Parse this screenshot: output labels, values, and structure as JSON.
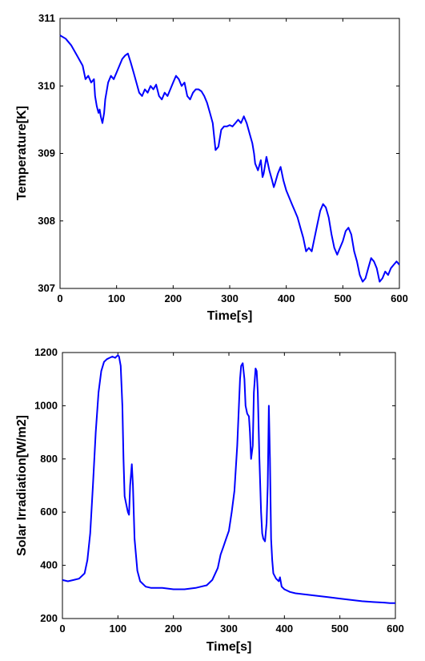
{
  "chart_data": [
    {
      "type": "line",
      "xlabel": "Time[s]",
      "ylabel": "Temperature[K]",
      "xlim": [
        0,
        600
      ],
      "ylim": [
        307,
        311
      ],
      "xticks": [
        "0",
        "100",
        "200",
        "300",
        "400",
        "500",
        "600"
      ],
      "yticks": [
        "307",
        "308",
        "309",
        "310",
        "311"
      ],
      "grid": false,
      "line_color": "#0000ff",
      "x": [
        0,
        10,
        20,
        30,
        40,
        45,
        50,
        55,
        60,
        62,
        65,
        68,
        70,
        72,
        75,
        78,
        80,
        85,
        90,
        95,
        100,
        110,
        115,
        120,
        125,
        130,
        135,
        140,
        145,
        150,
        155,
        160,
        165,
        170,
        175,
        180,
        185,
        190,
        195,
        200,
        205,
        210,
        215,
        220,
        225,
        230,
        235,
        240,
        245,
        250,
        255,
        260,
        265,
        270,
        275,
        280,
        285,
        290,
        295,
        300,
        305,
        310,
        315,
        320,
        325,
        330,
        335,
        340,
        343,
        345,
        350,
        355,
        358,
        360,
        365,
        370,
        375,
        378,
        380,
        385,
        390,
        395,
        400,
        405,
        410,
        415,
        420,
        425,
        430,
        435,
        440,
        445,
        450,
        455,
        460,
        465,
        470,
        475,
        480,
        485,
        490,
        495,
        500,
        505,
        510,
        515,
        520,
        525,
        530,
        535,
        540,
        545,
        550,
        555,
        560,
        565,
        570,
        575,
        580,
        585,
        590,
        595,
        600
      ],
      "y": [
        310.75,
        310.7,
        310.6,
        310.45,
        310.3,
        310.1,
        310.15,
        310.05,
        310.1,
        309.85,
        309.7,
        309.6,
        309.65,
        309.55,
        309.45,
        309.6,
        309.8,
        310.05,
        310.15,
        310.1,
        310.2,
        310.4,
        310.45,
        310.48,
        310.35,
        310.2,
        310.05,
        309.9,
        309.85,
        309.95,
        309.9,
        310.0,
        309.95,
        310.02,
        309.85,
        309.8,
        309.9,
        309.85,
        309.95,
        310.05,
        310.15,
        310.1,
        310.0,
        310.05,
        309.85,
        309.8,
        309.9,
        309.95,
        309.95,
        309.92,
        309.85,
        309.75,
        309.6,
        309.45,
        309.05,
        309.1,
        309.35,
        309.4,
        309.4,
        309.42,
        309.4,
        309.45,
        309.5,
        309.45,
        309.55,
        309.45,
        309.3,
        309.15,
        309.0,
        308.85,
        308.75,
        308.9,
        308.65,
        308.7,
        308.95,
        308.75,
        308.6,
        308.5,
        308.55,
        308.7,
        308.8,
        308.6,
        308.45,
        308.35,
        308.25,
        308.15,
        308.05,
        307.9,
        307.75,
        307.55,
        307.6,
        307.55,
        307.75,
        307.95,
        308.15,
        308.25,
        308.2,
        308.05,
        307.8,
        307.6,
        307.5,
        307.6,
        307.7,
        307.85,
        307.9,
        307.8,
        307.55,
        307.4,
        307.2,
        307.1,
        307.15,
        307.3,
        307.45,
        307.4,
        307.3,
        307.1,
        307.15,
        307.25,
        307.2,
        307.3,
        307.35,
        307.4,
        307.35
      ]
    },
    {
      "type": "line",
      "xlabel": "Time[s]",
      "ylabel": "Solar Irradiation[W/m2]",
      "xlim": [
        0,
        600
      ],
      "ylim": [
        200,
        1200
      ],
      "xticks": [
        "0",
        "100",
        "200",
        "300",
        "400",
        "500",
        "600"
      ],
      "yticks": [
        "200",
        "400",
        "600",
        "800",
        "1000",
        "1200"
      ],
      "grid": false,
      "line_color": "#0000ff",
      "x": [
        0,
        10,
        20,
        30,
        40,
        45,
        50,
        55,
        60,
        65,
        70,
        75,
        80,
        85,
        90,
        95,
        100,
        102,
        105,
        108,
        110,
        112,
        115,
        118,
        120,
        122,
        125,
        127,
        130,
        135,
        140,
        150,
        160,
        180,
        200,
        220,
        240,
        260,
        270,
        280,
        285,
        290,
        295,
        300,
        305,
        310,
        315,
        318,
        320,
        322,
        325,
        328,
        330,
        333,
        336,
        338,
        340,
        343,
        345,
        348,
        350,
        352,
        355,
        358,
        360,
        362,
        365,
        368,
        370,
        372,
        374,
        376,
        378,
        380,
        385,
        390,
        392,
        395,
        400,
        410,
        420,
        440,
        460,
        480,
        500,
        520,
        540,
        560,
        580,
        590,
        600
      ],
      "y": [
        345,
        340,
        345,
        350,
        370,
        420,
        520,
        700,
        900,
        1050,
        1130,
        1165,
        1175,
        1180,
        1185,
        1180,
        1190,
        1185,
        1150,
        1000,
        800,
        660,
        630,
        600,
        590,
        700,
        780,
        700,
        500,
        380,
        340,
        320,
        315,
        315,
        310,
        310,
        315,
        325,
        345,
        390,
        440,
        470,
        500,
        530,
        600,
        680,
        850,
        1000,
        1100,
        1150,
        1160,
        1100,
        1000,
        970,
        960,
        900,
        800,
        850,
        1050,
        1140,
        1130,
        1050,
        800,
        600,
        520,
        500,
        490,
        560,
        700,
        1000,
        800,
        500,
        420,
        370,
        350,
        340,
        355,
        320,
        310,
        300,
        295,
        290,
        285,
        280,
        275,
        270,
        265,
        262,
        260,
        258,
        258
      ]
    }
  ]
}
